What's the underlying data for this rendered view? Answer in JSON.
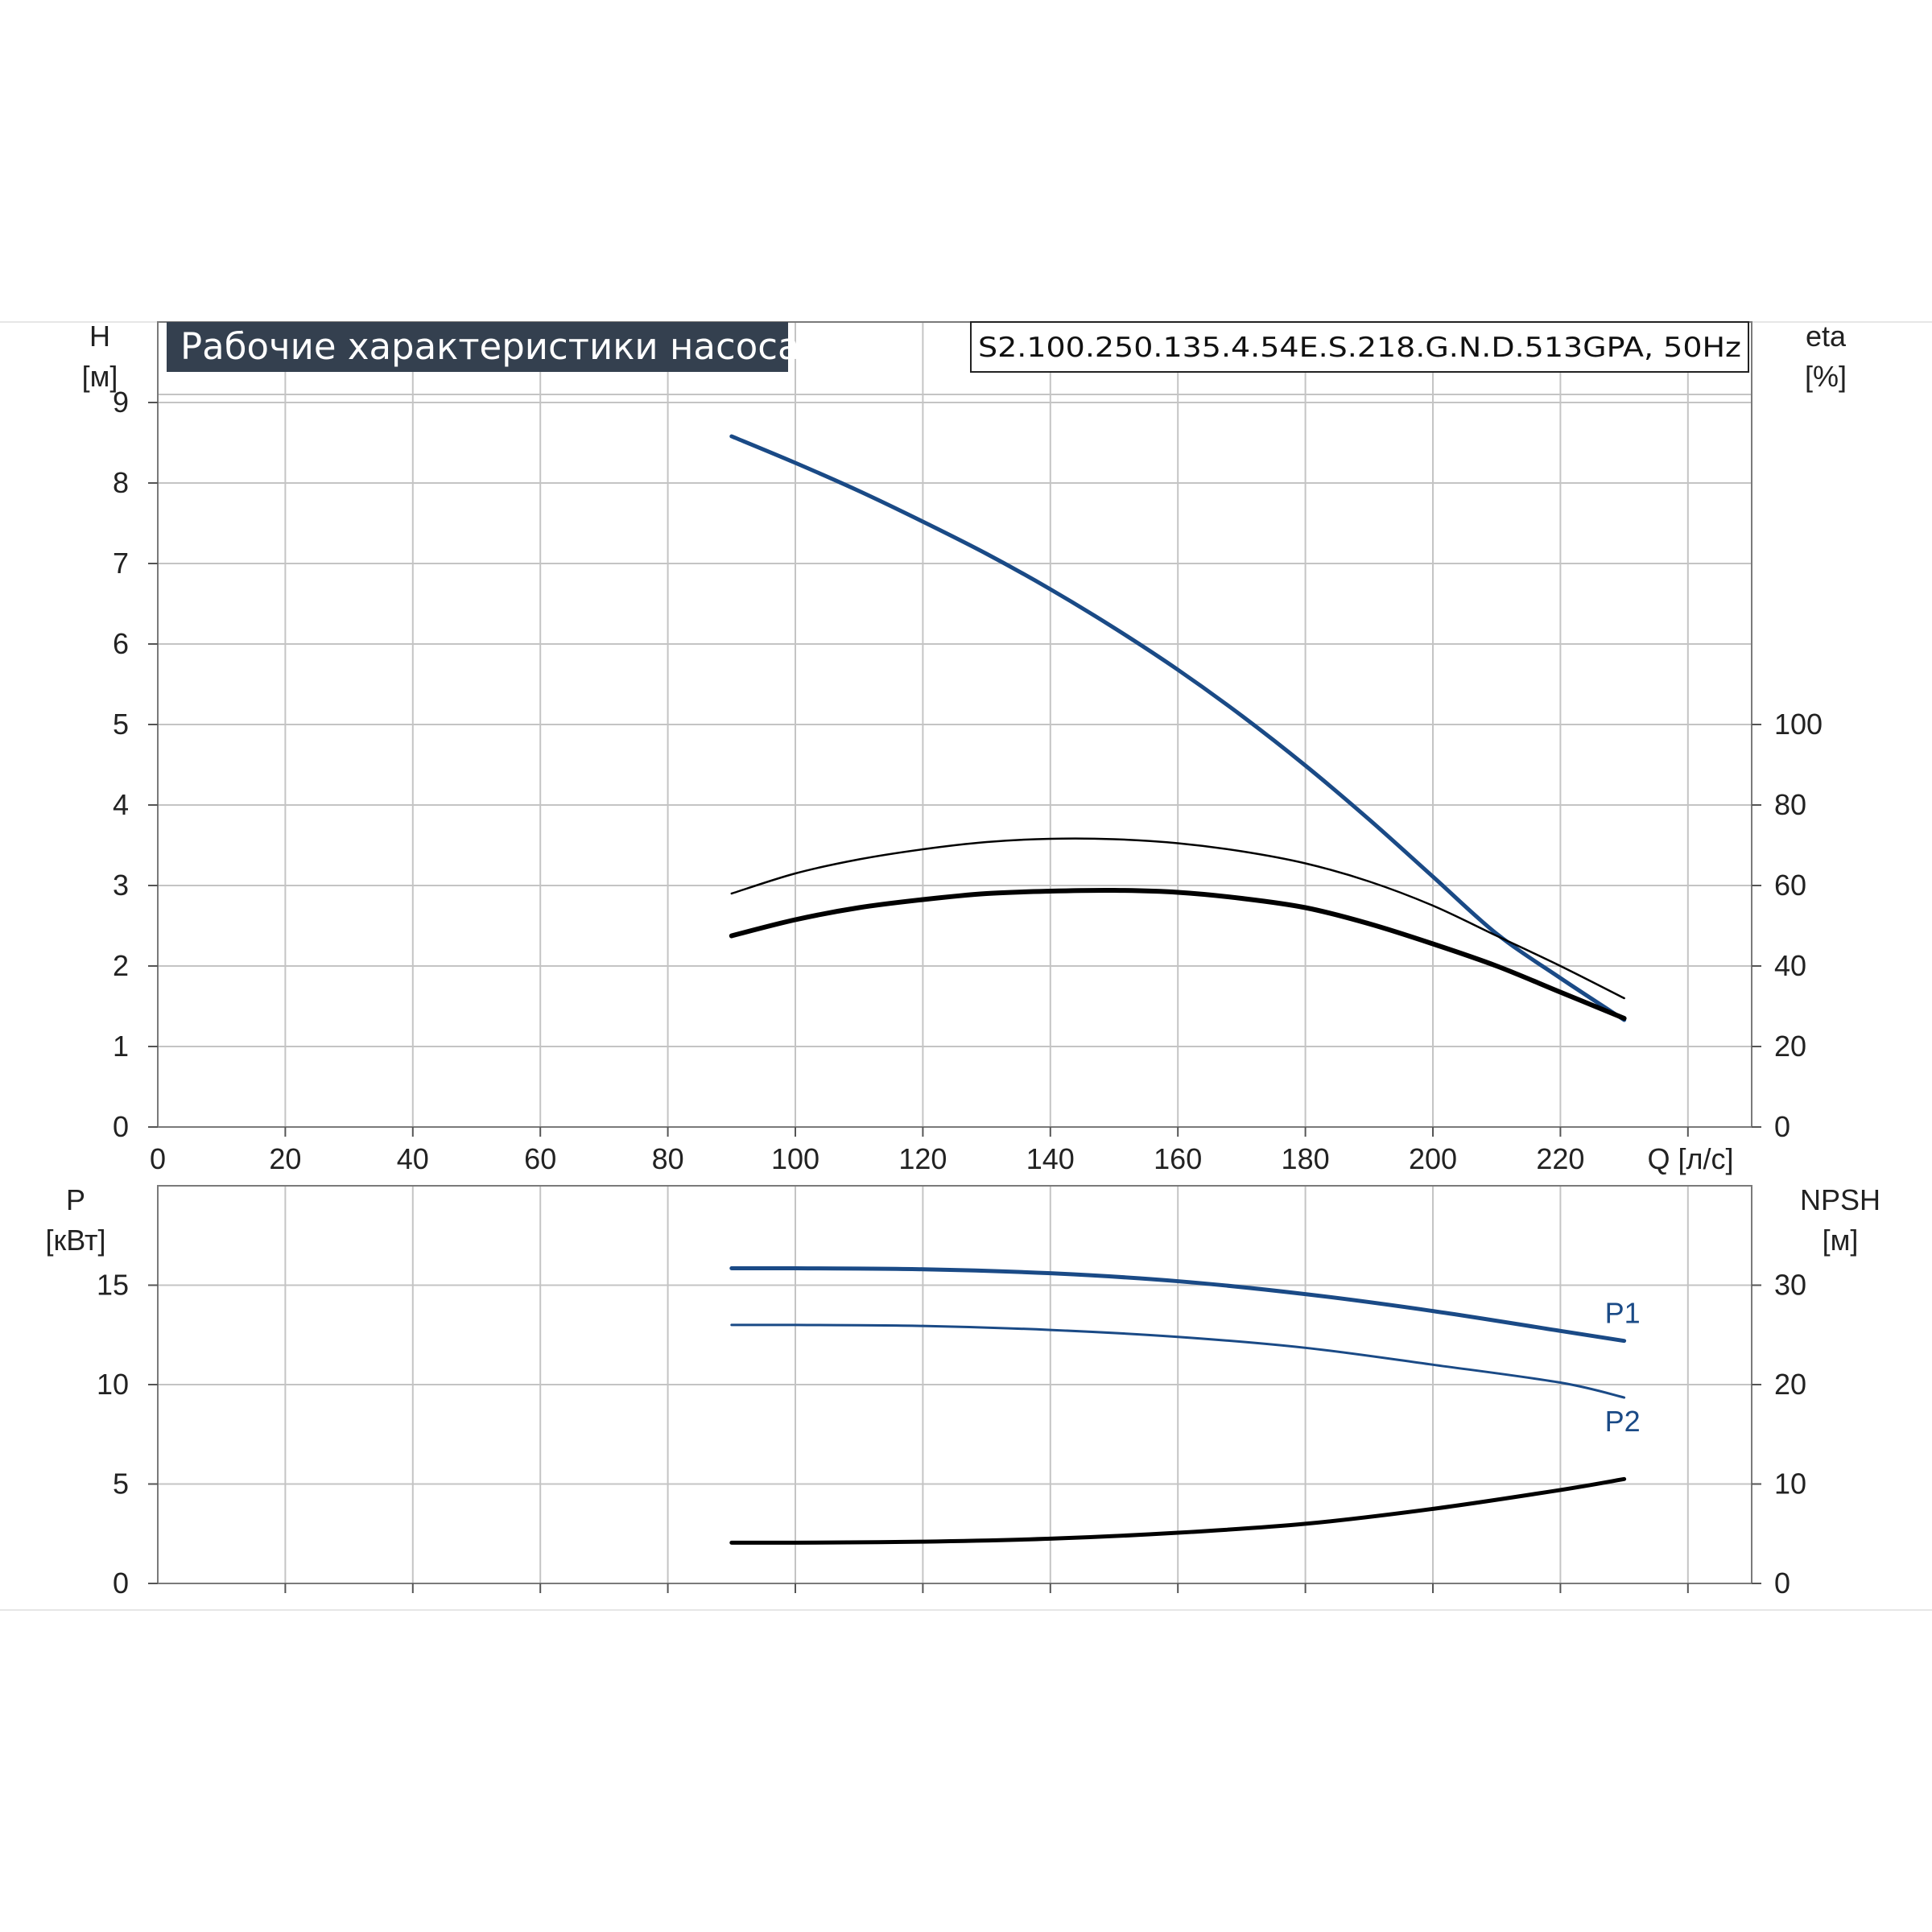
{
  "chart_data": [
    {
      "type": "line",
      "title": "Рабочие характеристики насоса",
      "subtitle": "S2.100.250.135.4.54E.S.218.G.N.D.513GPA, 50Hz",
      "xlabel": "Q [л/с]",
      "xlim": [
        0,
        250
      ],
      "x_ticks": [
        "0",
        "20",
        "40",
        "60",
        "80",
        "100",
        "120",
        "140",
        "160",
        "180",
        "200",
        "220"
      ],
      "y_left": {
        "label": "H",
        "unit": "[м]",
        "ylim": [
          0,
          10
        ],
        "ticks": [
          "0",
          "1",
          "2",
          "3",
          "4",
          "5",
          "6",
          "7",
          "8",
          "9"
        ]
      },
      "y_right": {
        "label": "eta",
        "unit": "[%]",
        "ylim": [
          0,
          200
        ],
        "ticks": [
          "0",
          "20",
          "40",
          "60",
          "80",
          "100"
        ]
      },
      "grid": true,
      "series": [
        {
          "axis": "left",
          "color": "#1a4a86",
          "width": 5,
          "x": [
            90,
            100,
            110,
            120,
            130,
            140,
            150,
            160,
            170,
            180,
            190,
            200,
            210,
            220,
            230
          ],
          "y": [
            8.58,
            8.25,
            7.9,
            7.52,
            7.12,
            6.68,
            6.2,
            5.68,
            5.11,
            4.49,
            3.82,
            3.11,
            2.4,
            1.85,
            1.33
          ]
        },
        {
          "axis": "right",
          "color": "#000000",
          "width": 2.5,
          "x": [
            90,
            100,
            110,
            120,
            130,
            140,
            150,
            160,
            170,
            180,
            190,
            200,
            210,
            220,
            230
          ],
          "y": [
            58,
            63,
            66.5,
            69,
            70.8,
            71.6,
            71.5,
            70.5,
            68.5,
            65.5,
            61,
            55,
            47.5,
            40,
            32
          ]
        },
        {
          "axis": "right",
          "color": "#000000",
          "width": 6,
          "x": [
            90,
            100,
            110,
            120,
            130,
            140,
            150,
            160,
            170,
            180,
            190,
            200,
            210,
            220,
            230
          ],
          "y": [
            47.5,
            51.5,
            54.5,
            56.5,
            58,
            58.6,
            58.8,
            58.3,
            56.8,
            54.5,
            50.5,
            45.5,
            40,
            33.5,
            27
          ]
        }
      ]
    },
    {
      "type": "line",
      "x_ticks": [
        "0",
        "20",
        "40",
        "60",
        "80",
        "100",
        "120",
        "140",
        "160",
        "180",
        "200",
        "220"
      ],
      "xlim": [
        0,
        250
      ],
      "y_left": {
        "label": "P",
        "unit": "[кВт]",
        "ylim": [
          0,
          20
        ],
        "ticks": [
          "0",
          "5",
          "10",
          "15"
        ]
      },
      "y_right": {
        "label": "NPSH",
        "unit": "[м]",
        "ylim": [
          0,
          40
        ],
        "ticks": [
          "0",
          "10",
          "20",
          "30"
        ]
      },
      "grid": true,
      "series": [
        {
          "name": "P1",
          "axis": "left",
          "color": "#1a4a86",
          "width": 5,
          "x": [
            90,
            100,
            120,
            140,
            160,
            180,
            200,
            220,
            230
          ],
          "y": [
            15.85,
            15.85,
            15.8,
            15.6,
            15.2,
            14.55,
            13.7,
            12.7,
            12.2
          ]
        },
        {
          "name": "P2",
          "axis": "left",
          "color": "#1a4a86",
          "width": 3,
          "x": [
            90,
            100,
            120,
            140,
            160,
            180,
            200,
            220,
            230
          ],
          "y": [
            13.0,
            13.0,
            12.95,
            12.75,
            12.4,
            11.85,
            11.0,
            10.1,
            9.35
          ]
        },
        {
          "axis": "right",
          "color": "#000000",
          "width": 5,
          "x": [
            90,
            100,
            120,
            140,
            160,
            180,
            200,
            220,
            230
          ],
          "y": [
            4.1,
            4.1,
            4.2,
            4.5,
            5.1,
            6.0,
            7.5,
            9.4,
            10.5
          ]
        }
      ]
    }
  ]
}
